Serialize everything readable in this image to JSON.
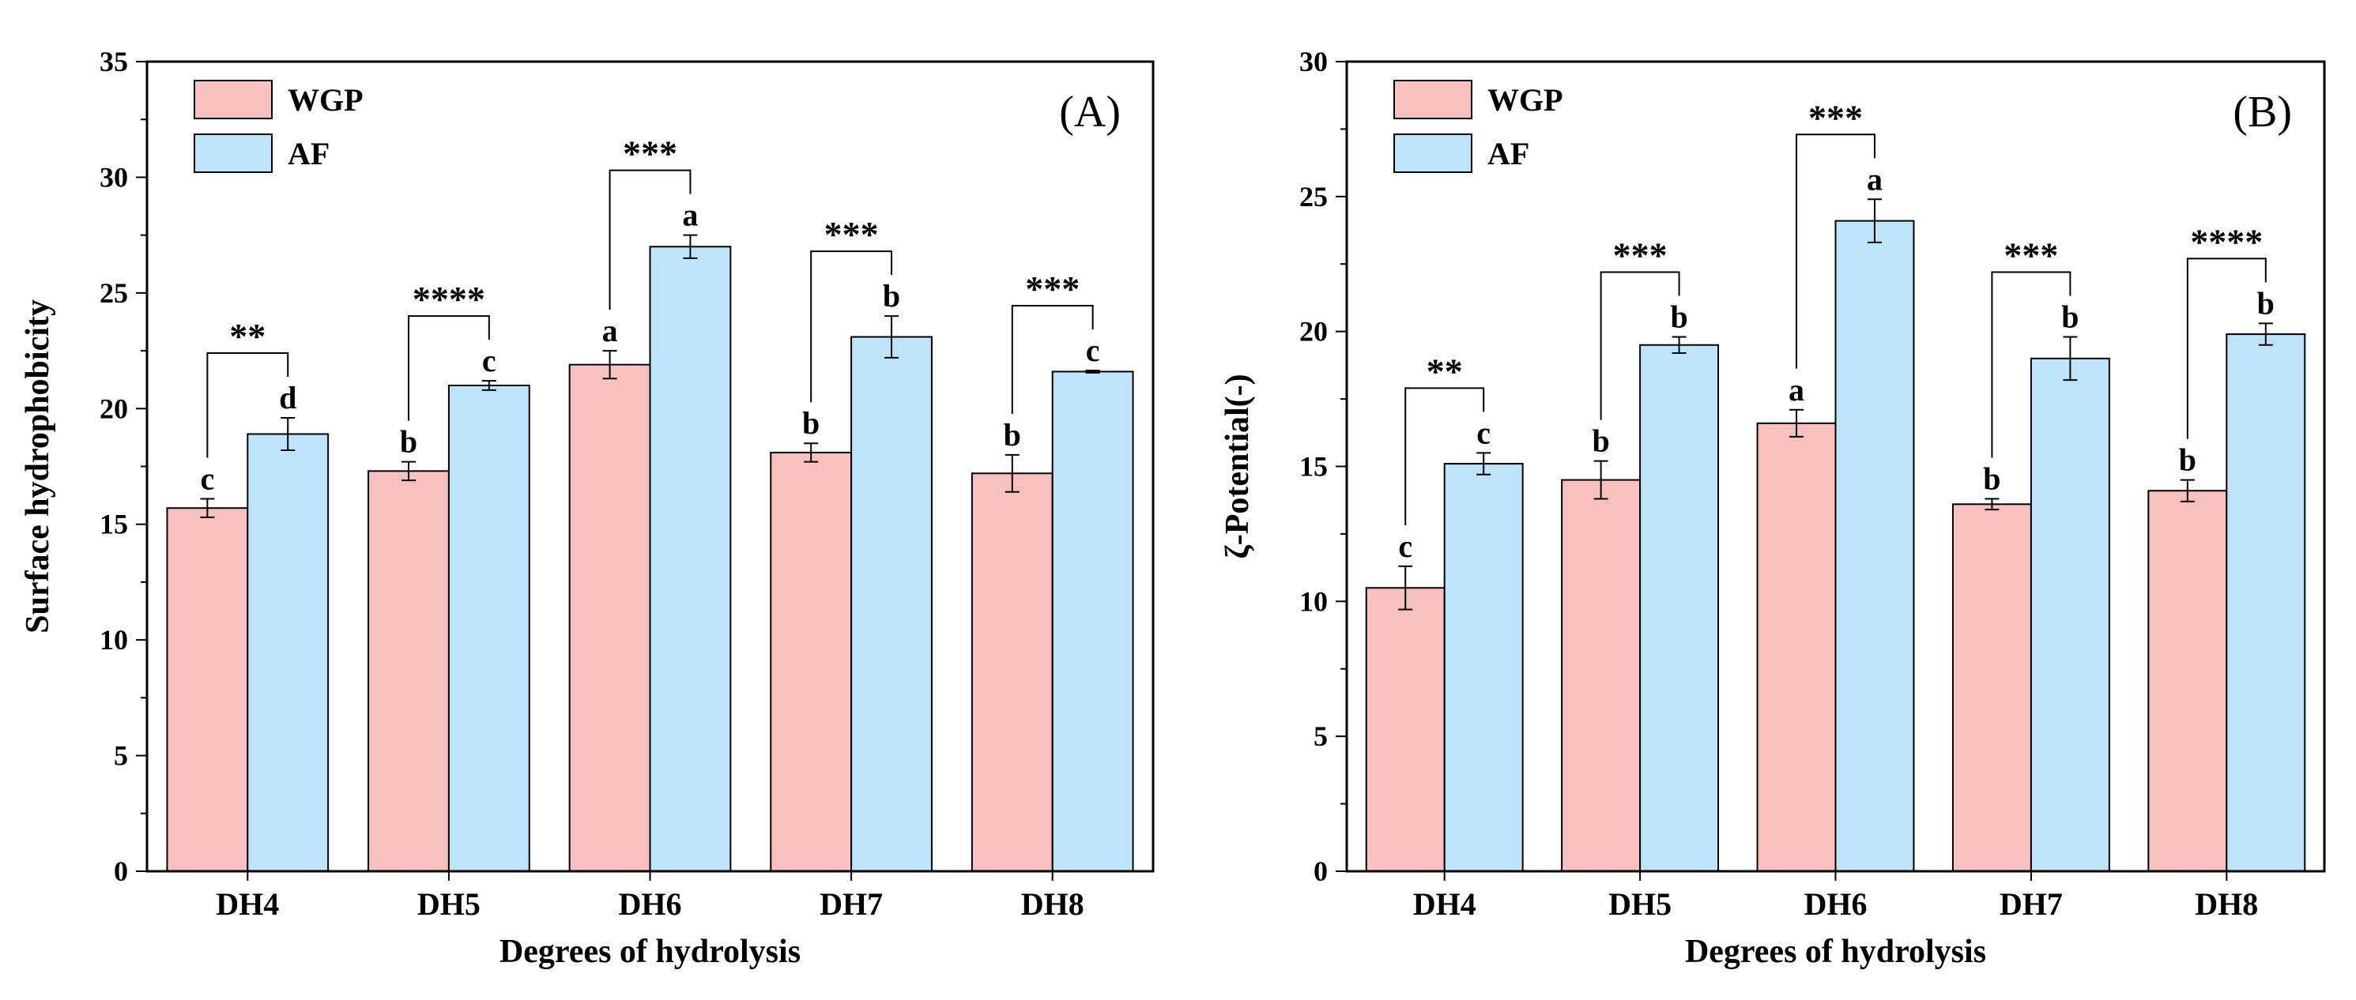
{
  "colors": {
    "WGP": "#f9c0c0",
    "AF": "#bde4fa"
  },
  "chart_data": [
    {
      "type": "bar",
      "panel": "(A)",
      "title": "",
      "xlabel": "Degrees of hydrolysis",
      "ylabel": "Surface hydrophobicity",
      "categories": [
        "DH4",
        "DH5",
        "DH6",
        "DH7",
        "DH8"
      ],
      "ylim": [
        0,
        35
      ],
      "yticks": [
        "0",
        "5",
        "10",
        "15",
        "20",
        "25",
        "30",
        "35"
      ],
      "yminor": 2.5,
      "legend_position": "top-left",
      "series": [
        {
          "name": "WGP",
          "color_key": "WGP",
          "values": [
            15.7,
            17.3,
            21.9,
            18.1,
            17.2
          ],
          "errors": [
            0.4,
            0.4,
            0.6,
            0.4,
            0.8
          ],
          "letters": [
            "c",
            "b",
            "a",
            "b",
            "b"
          ]
        },
        {
          "name": "AF",
          "color_key": "AF",
          "values": [
            18.9,
            21.0,
            27.0,
            23.1,
            21.6
          ],
          "errors": [
            0.7,
            0.2,
            0.5,
            0.9,
            0.05
          ],
          "letters": [
            "d",
            "c",
            "a",
            "b",
            "c"
          ]
        }
      ],
      "significance": [
        "**",
        "****",
        "***",
        "***",
        "***"
      ]
    },
    {
      "type": "bar",
      "panel": "(B)",
      "title": "",
      "xlabel": "Degrees of hydrolysis",
      "ylabel": "ζ-Potential(-)",
      "categories": [
        "DH4",
        "DH5",
        "DH6",
        "DH7",
        "DH8"
      ],
      "ylim": [
        0,
        30
      ],
      "yticks": [
        "0",
        "5",
        "10",
        "15",
        "20",
        "25",
        "30"
      ],
      "yminor": 2.5,
      "legend_position": "top-left",
      "series": [
        {
          "name": "WGP",
          "color_key": "WGP",
          "values": [
            10.5,
            14.5,
            16.6,
            13.6,
            14.1
          ],
          "errors": [
            0.8,
            0.7,
            0.5,
            0.2,
            0.4
          ],
          "letters": [
            "c",
            "b",
            "a",
            "b",
            "b"
          ]
        },
        {
          "name": "AF",
          "color_key": "AF",
          "values": [
            15.1,
            19.5,
            24.1,
            19.0,
            19.9
          ],
          "errors": [
            0.4,
            0.3,
            0.8,
            0.8,
            0.4
          ],
          "letters": [
            "c",
            "b",
            "a",
            "b",
            "b"
          ]
        }
      ],
      "significance": [
        "**",
        "***",
        "***",
        "***",
        "****"
      ]
    }
  ]
}
